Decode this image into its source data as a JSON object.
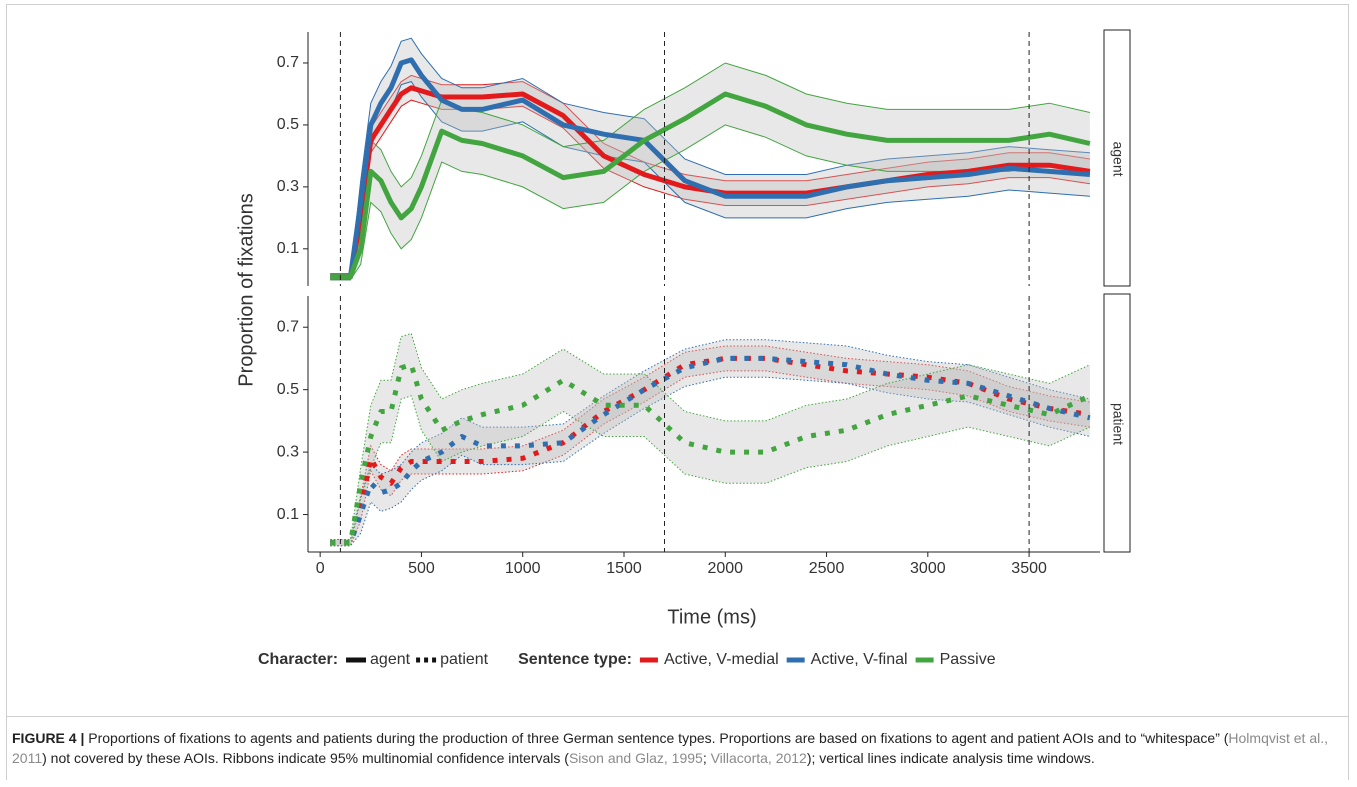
{
  "chart_data": [
    {
      "type": "line",
      "facet": "agent",
      "line_style": "solid",
      "ylabel": "Proportion of fixations",
      "x": [
        50,
        100,
        150,
        200,
        250,
        300,
        350,
        400,
        450,
        500,
        600,
        700,
        800,
        1000,
        1200,
        1400,
        1600,
        1800,
        2000,
        2200,
        2400,
        2600,
        2800,
        3000,
        3200,
        3400,
        3600,
        3800
      ],
      "xlim": [
        -60,
        3850
      ],
      "ylim": [
        -0.02,
        0.8
      ],
      "yticks": [
        0.1,
        0.3,
        0.5,
        0.7
      ],
      "vlines": [
        100,
        1700,
        3500
      ],
      "series": [
        {
          "name": "Active, V-medial",
          "color": "#e31a1c",
          "values": [
            0.01,
            0.01,
            0.01,
            0.2,
            0.45,
            0.5,
            0.55,
            0.6,
            0.62,
            0.61,
            0.59,
            0.59,
            0.59,
            0.6,
            0.53,
            0.4,
            0.34,
            0.3,
            0.28,
            0.28,
            0.28,
            0.3,
            0.32,
            0.34,
            0.35,
            0.37,
            0.37,
            0.35
          ],
          "lower": [
            0,
            0,
            0,
            0.16,
            0.41,
            0.46,
            0.51,
            0.56,
            0.58,
            0.57,
            0.55,
            0.55,
            0.55,
            0.56,
            0.49,
            0.36,
            0.3,
            0.26,
            0.24,
            0.24,
            0.24,
            0.26,
            0.28,
            0.3,
            0.31,
            0.33,
            0.33,
            0.31
          ],
          "upper": [
            0.02,
            0.02,
            0.02,
            0.24,
            0.49,
            0.54,
            0.59,
            0.64,
            0.66,
            0.65,
            0.63,
            0.63,
            0.63,
            0.64,
            0.57,
            0.44,
            0.38,
            0.34,
            0.32,
            0.32,
            0.32,
            0.34,
            0.36,
            0.38,
            0.39,
            0.41,
            0.41,
            0.39
          ]
        },
        {
          "name": "Active, V-final",
          "color": "#2f6fb0",
          "values": [
            0.01,
            0.01,
            0.01,
            0.25,
            0.5,
            0.57,
            0.62,
            0.7,
            0.71,
            0.66,
            0.58,
            0.55,
            0.55,
            0.58,
            0.5,
            0.47,
            0.45,
            0.32,
            0.27,
            0.27,
            0.27,
            0.3,
            0.32,
            0.33,
            0.34,
            0.36,
            0.35,
            0.34
          ],
          "lower": [
            0,
            0,
            0,
            0.18,
            0.43,
            0.5,
            0.55,
            0.63,
            0.64,
            0.59,
            0.51,
            0.48,
            0.48,
            0.51,
            0.43,
            0.4,
            0.38,
            0.25,
            0.2,
            0.2,
            0.2,
            0.23,
            0.25,
            0.26,
            0.27,
            0.29,
            0.28,
            0.27
          ],
          "upper": [
            0.02,
            0.02,
            0.02,
            0.32,
            0.57,
            0.64,
            0.69,
            0.77,
            0.78,
            0.73,
            0.65,
            0.62,
            0.62,
            0.65,
            0.57,
            0.54,
            0.52,
            0.39,
            0.34,
            0.34,
            0.34,
            0.37,
            0.39,
            0.4,
            0.41,
            0.43,
            0.42,
            0.41
          ]
        },
        {
          "name": "Passive",
          "color": "#43a540",
          "values": [
            0.01,
            0.01,
            0.01,
            0.1,
            0.35,
            0.32,
            0.25,
            0.2,
            0.23,
            0.3,
            0.48,
            0.45,
            0.44,
            0.4,
            0.33,
            0.35,
            0.45,
            0.52,
            0.6,
            0.56,
            0.5,
            0.47,
            0.45,
            0.45,
            0.45,
            0.45,
            0.47,
            0.44
          ],
          "lower": [
            0,
            0,
            0,
            0.05,
            0.25,
            0.22,
            0.15,
            0.1,
            0.13,
            0.2,
            0.38,
            0.35,
            0.34,
            0.3,
            0.23,
            0.25,
            0.35,
            0.42,
            0.5,
            0.46,
            0.4,
            0.37,
            0.35,
            0.35,
            0.35,
            0.35,
            0.37,
            0.34
          ],
          "upper": [
            0.02,
            0.02,
            0.02,
            0.15,
            0.45,
            0.42,
            0.35,
            0.3,
            0.33,
            0.4,
            0.58,
            0.55,
            0.54,
            0.5,
            0.43,
            0.45,
            0.55,
            0.62,
            0.7,
            0.66,
            0.6,
            0.57,
            0.55,
            0.55,
            0.55,
            0.55,
            0.57,
            0.54
          ]
        }
      ]
    },
    {
      "type": "line",
      "facet": "patient",
      "line_style": "dotted",
      "xlabel": "Time (ms)",
      "x": [
        50,
        100,
        150,
        200,
        250,
        300,
        350,
        400,
        450,
        500,
        600,
        700,
        800,
        1000,
        1200,
        1400,
        1600,
        1800,
        2000,
        2200,
        2400,
        2600,
        2800,
        3000,
        3200,
        3400,
        3600,
        3800
      ],
      "xlim": [
        -60,
        3850
      ],
      "xticks": [
        0,
        500,
        1000,
        1500,
        2000,
        2500,
        3000,
        3500
      ],
      "ylim": [
        -0.02,
        0.8
      ],
      "yticks": [
        0.1,
        0.3,
        0.5,
        0.7
      ],
      "vlines": [
        100,
        1700,
        3500
      ],
      "series": [
        {
          "name": "Active, V-medial",
          "color": "#e31a1c",
          "values": [
            0.01,
            0.01,
            0.01,
            0.12,
            0.28,
            0.22,
            0.2,
            0.25,
            0.27,
            0.27,
            0.27,
            0.27,
            0.27,
            0.28,
            0.33,
            0.43,
            0.5,
            0.58,
            0.6,
            0.6,
            0.58,
            0.56,
            0.55,
            0.54,
            0.52,
            0.47,
            0.44,
            0.42
          ],
          "lower": [
            0,
            0,
            0,
            0.08,
            0.24,
            0.18,
            0.16,
            0.21,
            0.23,
            0.23,
            0.23,
            0.23,
            0.23,
            0.24,
            0.29,
            0.39,
            0.46,
            0.54,
            0.56,
            0.56,
            0.54,
            0.52,
            0.51,
            0.5,
            0.48,
            0.43,
            0.4,
            0.38
          ],
          "upper": [
            0.02,
            0.02,
            0.02,
            0.16,
            0.32,
            0.26,
            0.24,
            0.29,
            0.31,
            0.31,
            0.31,
            0.31,
            0.31,
            0.32,
            0.37,
            0.47,
            0.54,
            0.62,
            0.64,
            0.64,
            0.62,
            0.6,
            0.59,
            0.58,
            0.56,
            0.51,
            0.48,
            0.46
          ]
        },
        {
          "name": "Active, V-final",
          "color": "#2f6fb0",
          "values": [
            0.01,
            0.01,
            0.01,
            0.1,
            0.2,
            0.17,
            0.18,
            0.2,
            0.24,
            0.27,
            0.3,
            0.35,
            0.32,
            0.32,
            0.33,
            0.42,
            0.5,
            0.57,
            0.6,
            0.6,
            0.59,
            0.58,
            0.55,
            0.53,
            0.52,
            0.48,
            0.44,
            0.41
          ],
          "lower": [
            0,
            0,
            0,
            0.04,
            0.14,
            0.11,
            0.12,
            0.14,
            0.18,
            0.21,
            0.24,
            0.29,
            0.26,
            0.26,
            0.27,
            0.36,
            0.44,
            0.51,
            0.54,
            0.54,
            0.53,
            0.52,
            0.49,
            0.47,
            0.46,
            0.42,
            0.38,
            0.35
          ],
          "upper": [
            0.02,
            0.02,
            0.02,
            0.16,
            0.26,
            0.23,
            0.24,
            0.26,
            0.3,
            0.33,
            0.36,
            0.41,
            0.38,
            0.38,
            0.39,
            0.48,
            0.56,
            0.63,
            0.66,
            0.66,
            0.65,
            0.64,
            0.61,
            0.59,
            0.58,
            0.54,
            0.5,
            0.47
          ]
        },
        {
          "name": "Passive",
          "color": "#43a540",
          "values": [
            0.01,
            0.01,
            0.01,
            0.2,
            0.35,
            0.43,
            0.43,
            0.57,
            0.58,
            0.47,
            0.37,
            0.4,
            0.42,
            0.45,
            0.53,
            0.45,
            0.45,
            0.33,
            0.3,
            0.3,
            0.35,
            0.37,
            0.42,
            0.45,
            0.48,
            0.45,
            0.42,
            0.48
          ],
          "lower": [
            0,
            0,
            0,
            0.15,
            0.25,
            0.33,
            0.33,
            0.47,
            0.48,
            0.37,
            0.27,
            0.3,
            0.32,
            0.35,
            0.43,
            0.35,
            0.35,
            0.23,
            0.2,
            0.2,
            0.25,
            0.27,
            0.32,
            0.35,
            0.38,
            0.35,
            0.32,
            0.38
          ],
          "upper": [
            0.02,
            0.02,
            0.02,
            0.25,
            0.45,
            0.53,
            0.53,
            0.67,
            0.68,
            0.57,
            0.47,
            0.5,
            0.52,
            0.55,
            0.63,
            0.55,
            0.55,
            0.43,
            0.4,
            0.4,
            0.45,
            0.47,
            0.52,
            0.55,
            0.58,
            0.55,
            0.52,
            0.58
          ]
        }
      ]
    }
  ],
  "legend": {
    "character_title": "Character:",
    "character": [
      "agent",
      "patient"
    ],
    "sentence_title": "Sentence type:"
  },
  "caption": [
    {
      "text": "FIGURE 4 |",
      "style": "bold"
    },
    {
      "text": " Proportions of fixations to agents and patients during the production of three German sentence types. Proportions are based on fixations to agent and patient AOIs and to “whitespace” (",
      "style": "normal"
    },
    {
      "text": "Holmqvist et al., 2011",
      "style": "citation"
    },
    {
      "text": ") not covered by these AOIs. Ribbons indicate 95% multinomial confidence intervals (",
      "style": "normal"
    },
    {
      "text": "Sison and Glaz, 1995",
      "style": "citation"
    },
    {
      "text": "; ",
      "style": "normal"
    },
    {
      "text": "Villacorta, 2012",
      "style": "citation"
    },
    {
      "text": "); vertical lines indicate analysis time windows.",
      "style": "normal"
    }
  ]
}
